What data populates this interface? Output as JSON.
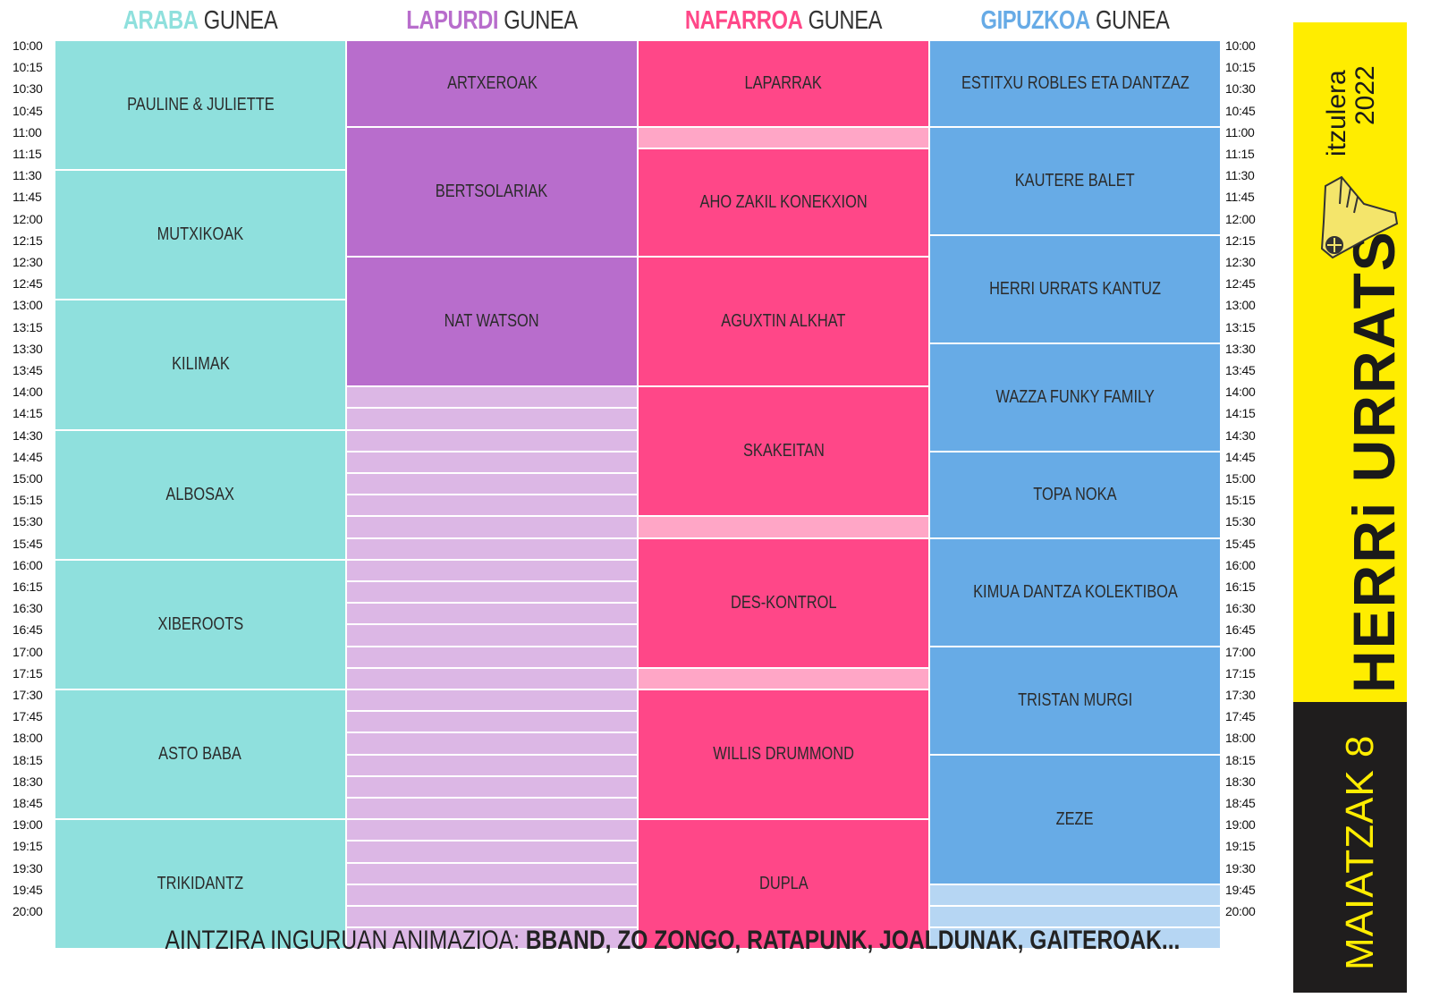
{
  "zones": [
    {
      "name": "ARABA",
      "suffix": "GUNEA",
      "color": "#8fe0dd",
      "slot_color": "#c8f0ee",
      "events": [
        {
          "label": "PAULINE & JULIETTE",
          "start": 0,
          "end": 5
        },
        {
          "label": "MUTXIKOAK",
          "start": 6,
          "end": 11
        },
        {
          "label": "KILIMAK",
          "start": 12,
          "end": 17
        },
        {
          "label": "ALBOSAX",
          "start": 18,
          "end": 23
        },
        {
          "label": "XIBEROOTS",
          "start": 24,
          "end": 29
        },
        {
          "label": "ASTO BABA",
          "start": 30,
          "end": 35
        },
        {
          "label": "TRIKIDANTZ",
          "start": 36,
          "end": 41
        }
      ]
    },
    {
      "name": "LAPURDI",
      "suffix": "GUNEA",
      "color": "#b86dcc",
      "slot_color": "#dcb7e5",
      "events": [
        {
          "label": "ARTXEROAK",
          "start": 0,
          "end": 3
        },
        {
          "label": "BERTSOLARIAK",
          "start": 4,
          "end": 9
        },
        {
          "label": "NAT WATSON",
          "start": 10,
          "end": 15
        }
      ]
    },
    {
      "name": "NAFARROA",
      "suffix": "GUNEA",
      "color": "#ff4788",
      "slot_color": "#ffa6c6",
      "events": [
        {
          "label": "LAPARRAK",
          "start": 0,
          "end": 3
        },
        {
          "label": "AHO ZAKIL KONEKXION",
          "start": 5,
          "end": 9
        },
        {
          "label": "AGUXTIN ALKHAT",
          "start": 10,
          "end": 15
        },
        {
          "label": "SKAKEITAN",
          "start": 16,
          "end": 21
        },
        {
          "label": "DES-KONTROL",
          "start": 23,
          "end": 28
        },
        {
          "label": "WILLIS DRUMMOND",
          "start": 30,
          "end": 35
        },
        {
          "label": "DUPLA",
          "start": 36,
          "end": 41
        }
      ]
    },
    {
      "name": "GIPUZKOA",
      "suffix": "GUNEA",
      "color": "#67abe6",
      "slot_color": "#b6d6f3",
      "events": [
        {
          "label": "ESTITXU ROBLES ETA DANTZAZ",
          "start": 0,
          "end": 3
        },
        {
          "label": "KAUTERE BALET",
          "start": 4,
          "end": 8
        },
        {
          "label": "HERRI URRATS KANTUZ",
          "start": 9,
          "end": 13
        },
        {
          "label": "WAZZA FUNKY FAMILY",
          "start": 14,
          "end": 18
        },
        {
          "label": "TOPA NOKA",
          "start": 19,
          "end": 22
        },
        {
          "label": "KIMUA DANTZA KOLEKTIBOA",
          "start": 23,
          "end": 27
        },
        {
          "label": "TRISTAN MURGI",
          "start": 28,
          "end": 32
        },
        {
          "label": "ZEZE",
          "start": 33,
          "end": 38
        }
      ]
    }
  ],
  "times": [
    "10:00",
    "10:15",
    "10:30",
    "10:45",
    "11:00",
    "11:15",
    "11:30",
    "11:45",
    "12:00",
    "12:15",
    "12:30",
    "12:45",
    "13:00",
    "13:15",
    "13:30",
    "13:45",
    "14:00",
    "14:15",
    "14:30",
    "14:45",
    "15:00",
    "15:15",
    "15:30",
    "15:45",
    "16:00",
    "16:15",
    "16:30",
    "16:45",
    "17:00",
    "17:15",
    "17:30",
    "17:45",
    "18:00",
    "18:15",
    "18:30",
    "18:45",
    "19:00",
    "19:15",
    "19:30",
    "19:45",
    "20:00"
  ],
  "footer": {
    "prefix": "AINTZIRA INGURUAN ANIMAZIOA: ",
    "bold": "BBAND, ZO ZONGO, RATAPUNK, JOALDUNAK, GAITEROAK..."
  },
  "side": {
    "herri": "HERRi URRATS",
    "itzulera": "itzulera",
    "year": "2022",
    "date": "MAIATZAK 8"
  }
}
